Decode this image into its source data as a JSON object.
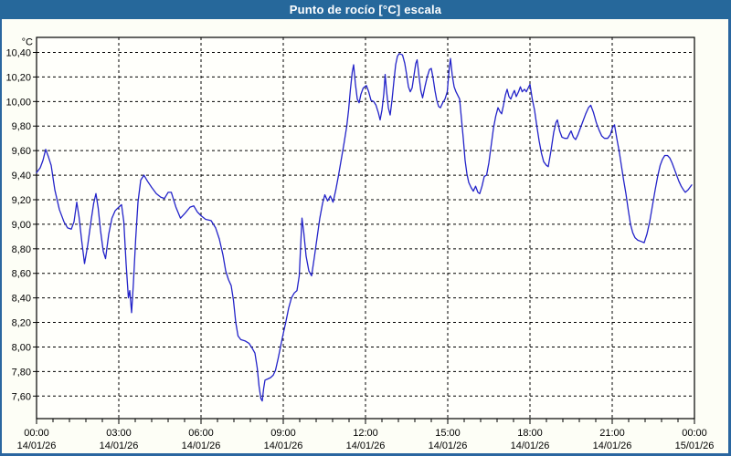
{
  "title": "Punto de rocío [°C] escala",
  "colors": {
    "titlebar": "#26689b",
    "border": "#2a66a0",
    "line": "#2323c9",
    "grid": "#000000",
    "background": "#fdfef6",
    "plot_background": "#fffffb",
    "text": "#000000"
  },
  "chart_data": {
    "type": "line",
    "title": "Punto de rocío [°C] escala",
    "unit_label": "°C",
    "grid": "dashed",
    "legend": "none",
    "x_axis": {
      "span_hours": 24,
      "major_ticks": [
        {
          "hour": 0,
          "time": "00:00",
          "date": "14/01/26"
        },
        {
          "hour": 3,
          "time": "03:00",
          "date": "14/01/26"
        },
        {
          "hour": 6,
          "time": "06:00",
          "date": "14/01/26"
        },
        {
          "hour": 9,
          "time": "09:00",
          "date": "14/01/26"
        },
        {
          "hour": 12,
          "time": "12:00",
          "date": "14/01/26"
        },
        {
          "hour": 15,
          "time": "15:00",
          "date": "14/01/26"
        },
        {
          "hour": 18,
          "time": "18:00",
          "date": "14/01/26"
        },
        {
          "hour": 21,
          "time": "21:00",
          "date": "14/01/26"
        },
        {
          "hour": 24,
          "time": "00:00",
          "date": "15/01/26"
        }
      ],
      "minor_tick_hours": 0.6
    },
    "y_axis": {
      "unit": "°C",
      "tick_labels": [
        "10,40",
        "10,20",
        "10,00",
        "9,80",
        "9,60",
        "9,40",
        "9,20",
        "9,00",
        "8,80",
        "8,60",
        "8,40",
        "8,20",
        "8,00",
        "7,80",
        "7,60"
      ],
      "tick_values": [
        10.4,
        10.2,
        10.0,
        9.8,
        9.6,
        9.4,
        9.2,
        9.0,
        8.8,
        8.6,
        8.4,
        8.2,
        8.0,
        7.8,
        7.6
      ],
      "min": 7.42,
      "max": 10.52
    },
    "series": [
      {
        "name": "Punto de rocío",
        "color": "#2323c9",
        "points_minutes_value": [
          [
            0,
            9.42
          ],
          [
            8,
            9.46
          ],
          [
            14,
            9.52
          ],
          [
            20,
            9.61
          ],
          [
            26,
            9.55
          ],
          [
            32,
            9.48
          ],
          [
            40,
            9.28
          ],
          [
            50,
            9.12
          ],
          [
            60,
            9.02
          ],
          [
            68,
            8.97
          ],
          [
            76,
            8.96
          ],
          [
            82,
            9.02
          ],
          [
            88,
            9.18
          ],
          [
            93,
            9.06
          ],
          [
            99,
            8.86
          ],
          [
            105,
            8.68
          ],
          [
            112,
            8.83
          ],
          [
            119,
            9.02
          ],
          [
            125,
            9.17
          ],
          [
            130,
            9.25
          ],
          [
            135,
            9.13
          ],
          [
            140,
            8.95
          ],
          [
            146,
            8.78
          ],
          [
            151,
            8.72
          ],
          [
            158,
            8.92
          ],
          [
            165,
            9.05
          ],
          [
            172,
            9.11
          ],
          [
            180,
            9.14
          ],
          [
            186,
            9.16
          ],
          [
            191,
            9.02
          ],
          [
            196,
            8.68
          ],
          [
            201,
            8.4
          ],
          [
            204,
            8.46
          ],
          [
            208,
            8.28
          ],
          [
            212,
            8.52
          ],
          [
            217,
            8.88
          ],
          [
            222,
            9.18
          ],
          [
            228,
            9.36
          ],
          [
            235,
            9.4
          ],
          [
            243,
            9.35
          ],
          [
            252,
            9.3
          ],
          [
            262,
            9.25
          ],
          [
            272,
            9.22
          ],
          [
            280,
            9.21
          ],
          [
            288,
            9.26
          ],
          [
            295,
            9.26
          ],
          [
            305,
            9.14
          ],
          [
            315,
            9.05
          ],
          [
            325,
            9.09
          ],
          [
            336,
            9.14
          ],
          [
            344,
            9.15
          ],
          [
            352,
            9.1
          ],
          [
            360,
            9.07
          ],
          [
            370,
            9.04
          ],
          [
            382,
            9.03
          ],
          [
            392,
            8.97
          ],
          [
            400,
            8.88
          ],
          [
            408,
            8.75
          ],
          [
            414,
            8.62
          ],
          [
            420,
            8.55
          ],
          [
            426,
            8.5
          ],
          [
            431,
            8.38
          ],
          [
            436,
            8.2
          ],
          [
            441,
            8.09
          ],
          [
            447,
            8.06
          ],
          [
            456,
            8.05
          ],
          [
            465,
            8.03
          ],
          [
            472,
            7.99
          ],
          [
            478,
            7.95
          ],
          [
            483,
            7.83
          ],
          [
            487,
            7.68
          ],
          [
            491,
            7.58
          ],
          [
            494,
            7.56
          ],
          [
            497,
            7.66
          ],
          [
            500,
            7.73
          ],
          [
            506,
            7.74
          ],
          [
            512,
            7.75
          ],
          [
            518,
            7.77
          ],
          [
            523,
            7.81
          ],
          [
            529,
            7.91
          ],
          [
            535,
            8.02
          ],
          [
            540,
            8.11
          ],
          [
            546,
            8.21
          ],
          [
            552,
            8.32
          ],
          [
            558,
            8.4
          ],
          [
            564,
            8.44
          ],
          [
            570,
            8.46
          ],
          [
            575,
            8.58
          ],
          [
            578,
            8.82
          ],
          [
            581,
            9.05
          ],
          [
            585,
            8.93
          ],
          [
            590,
            8.74
          ],
          [
            596,
            8.62
          ],
          [
            602,
            8.58
          ],
          [
            608,
            8.73
          ],
          [
            614,
            8.89
          ],
          [
            620,
            9.05
          ],
          [
            626,
            9.17
          ],
          [
            631,
            9.24
          ],
          [
            637,
            9.19
          ],
          [
            643,
            9.23
          ],
          [
            649,
            9.18
          ],
          [
            655,
            9.28
          ],
          [
            661,
            9.4
          ],
          [
            667,
            9.53
          ],
          [
            673,
            9.66
          ],
          [
            679,
            9.8
          ],
          [
            683,
            9.93
          ],
          [
            687,
            10.1
          ],
          [
            691,
            10.24
          ],
          [
            694,
            10.3
          ],
          [
            698,
            10.14
          ],
          [
            702,
            10.02
          ],
          [
            706,
            9.99
          ],
          [
            710,
            10.06
          ],
          [
            715,
            10.11
          ],
          [
            722,
            10.13
          ],
          [
            727,
            10.08
          ],
          [
            732,
            10.01
          ],
          [
            738,
            10.0
          ],
          [
            743,
            9.97
          ],
          [
            748,
            9.91
          ],
          [
            752,
            9.85
          ],
          [
            756,
            9.93
          ],
          [
            760,
            10.06
          ],
          [
            763,
            10.22
          ],
          [
            766,
            10.09
          ],
          [
            770,
            9.95
          ],
          [
            774,
            9.89
          ],
          [
            778,
            10.01
          ],
          [
            782,
            10.16
          ],
          [
            786,
            10.3
          ],
          [
            790,
            10.37
          ],
          [
            794,
            10.39
          ],
          [
            801,
            10.38
          ],
          [
            806,
            10.31
          ],
          [
            810,
            10.22
          ],
          [
            814,
            10.12
          ],
          [
            818,
            10.08
          ],
          [
            822,
            10.11
          ],
          [
            826,
            10.21
          ],
          [
            830,
            10.31
          ],
          [
            833,
            10.34
          ],
          [
            837,
            10.21
          ],
          [
            841,
            10.09
          ],
          [
            845,
            10.03
          ],
          [
            850,
            10.12
          ],
          [
            855,
            10.2
          ],
          [
            860,
            10.26
          ],
          [
            864,
            10.27
          ],
          [
            868,
            10.19
          ],
          [
            872,
            10.09
          ],
          [
            876,
            10.01
          ],
          [
            880,
            9.96
          ],
          [
            884,
            9.95
          ],
          [
            889,
            9.99
          ],
          [
            894,
            10.02
          ],
          [
            899,
            10.08
          ],
          [
            903,
            10.26
          ],
          [
            906,
            10.35
          ],
          [
            910,
            10.21
          ],
          [
            914,
            10.12
          ],
          [
            918,
            10.08
          ],
          [
            922,
            10.05
          ],
          [
            926,
            10.02
          ],
          [
            930,
            9.86
          ],
          [
            934,
            9.7
          ],
          [
            938,
            9.52
          ],
          [
            942,
            9.41
          ],
          [
            946,
            9.34
          ],
          [
            951,
            9.3
          ],
          [
            956,
            9.27
          ],
          [
            961,
            9.31
          ],
          [
            966,
            9.26
          ],
          [
            970,
            9.25
          ],
          [
            975,
            9.31
          ],
          [
            980,
            9.39
          ],
          [
            985,
            9.4
          ],
          [
            990,
            9.5
          ],
          [
            995,
            9.64
          ],
          [
            1000,
            9.78
          ],
          [
            1005,
            9.88
          ],
          [
            1010,
            9.95
          ],
          [
            1014,
            9.92
          ],
          [
            1018,
            9.9
          ],
          [
            1022,
            9.97
          ],
          [
            1026,
            10.05
          ],
          [
            1030,
            10.1
          ],
          [
            1034,
            10.04
          ],
          [
            1038,
            10.02
          ],
          [
            1042,
            10.06
          ],
          [
            1046,
            10.09
          ],
          [
            1050,
            10.04
          ],
          [
            1055,
            10.08
          ],
          [
            1059,
            10.12
          ],
          [
            1063,
            10.08
          ],
          [
            1068,
            10.1
          ],
          [
            1072,
            10.08
          ],
          [
            1076,
            10.11
          ],
          [
            1080,
            10.14
          ],
          [
            1085,
            10.02
          ],
          [
            1090,
            9.93
          ],
          [
            1095,
            9.8
          ],
          [
            1100,
            9.68
          ],
          [
            1105,
            9.58
          ],
          [
            1110,
            9.51
          ],
          [
            1116,
            9.48
          ],
          [
            1120,
            9.47
          ],
          [
            1126,
            9.6
          ],
          [
            1132,
            9.75
          ],
          [
            1137,
            9.83
          ],
          [
            1140,
            9.85
          ],
          [
            1145,
            9.76
          ],
          [
            1150,
            9.71
          ],
          [
            1156,
            9.7
          ],
          [
            1162,
            9.7
          ],
          [
            1167,
            9.74
          ],
          [
            1170,
            9.76
          ],
          [
            1175,
            9.71
          ],
          [
            1180,
            9.69
          ],
          [
            1185,
            9.73
          ],
          [
            1190,
            9.78
          ],
          [
            1196,
            9.84
          ],
          [
            1202,
            9.9
          ],
          [
            1208,
            9.95
          ],
          [
            1213,
            9.97
          ],
          [
            1219,
            9.91
          ],
          [
            1225,
            9.83
          ],
          [
            1231,
            9.77
          ],
          [
            1237,
            9.72
          ],
          [
            1243,
            9.7
          ],
          [
            1250,
            9.7
          ],
          [
            1256,
            9.73
          ],
          [
            1261,
            9.79
          ],
          [
            1265,
            9.81
          ],
          [
            1270,
            9.7
          ],
          [
            1275,
            9.6
          ],
          [
            1280,
            9.48
          ],
          [
            1285,
            9.36
          ],
          [
            1290,
            9.25
          ],
          [
            1295,
            9.12
          ],
          [
            1300,
            9.0
          ],
          [
            1305,
            8.93
          ],
          [
            1310,
            8.89
          ],
          [
            1316,
            8.87
          ],
          [
            1323,
            8.86
          ],
          [
            1330,
            8.85
          ],
          [
            1336,
            8.92
          ],
          [
            1342,
            9.02
          ],
          [
            1348,
            9.15
          ],
          [
            1354,
            9.28
          ],
          [
            1360,
            9.4
          ],
          [
            1365,
            9.48
          ],
          [
            1370,
            9.53
          ],
          [
            1375,
            9.56
          ],
          [
            1381,
            9.56
          ],
          [
            1386,
            9.54
          ],
          [
            1391,
            9.5
          ],
          [
            1396,
            9.45
          ],
          [
            1401,
            9.4
          ],
          [
            1406,
            9.35
          ],
          [
            1411,
            9.31
          ],
          [
            1416,
            9.28
          ],
          [
            1420,
            9.26
          ],
          [
            1426,
            9.28
          ],
          [
            1434,
            9.32
          ]
        ]
      }
    ]
  }
}
